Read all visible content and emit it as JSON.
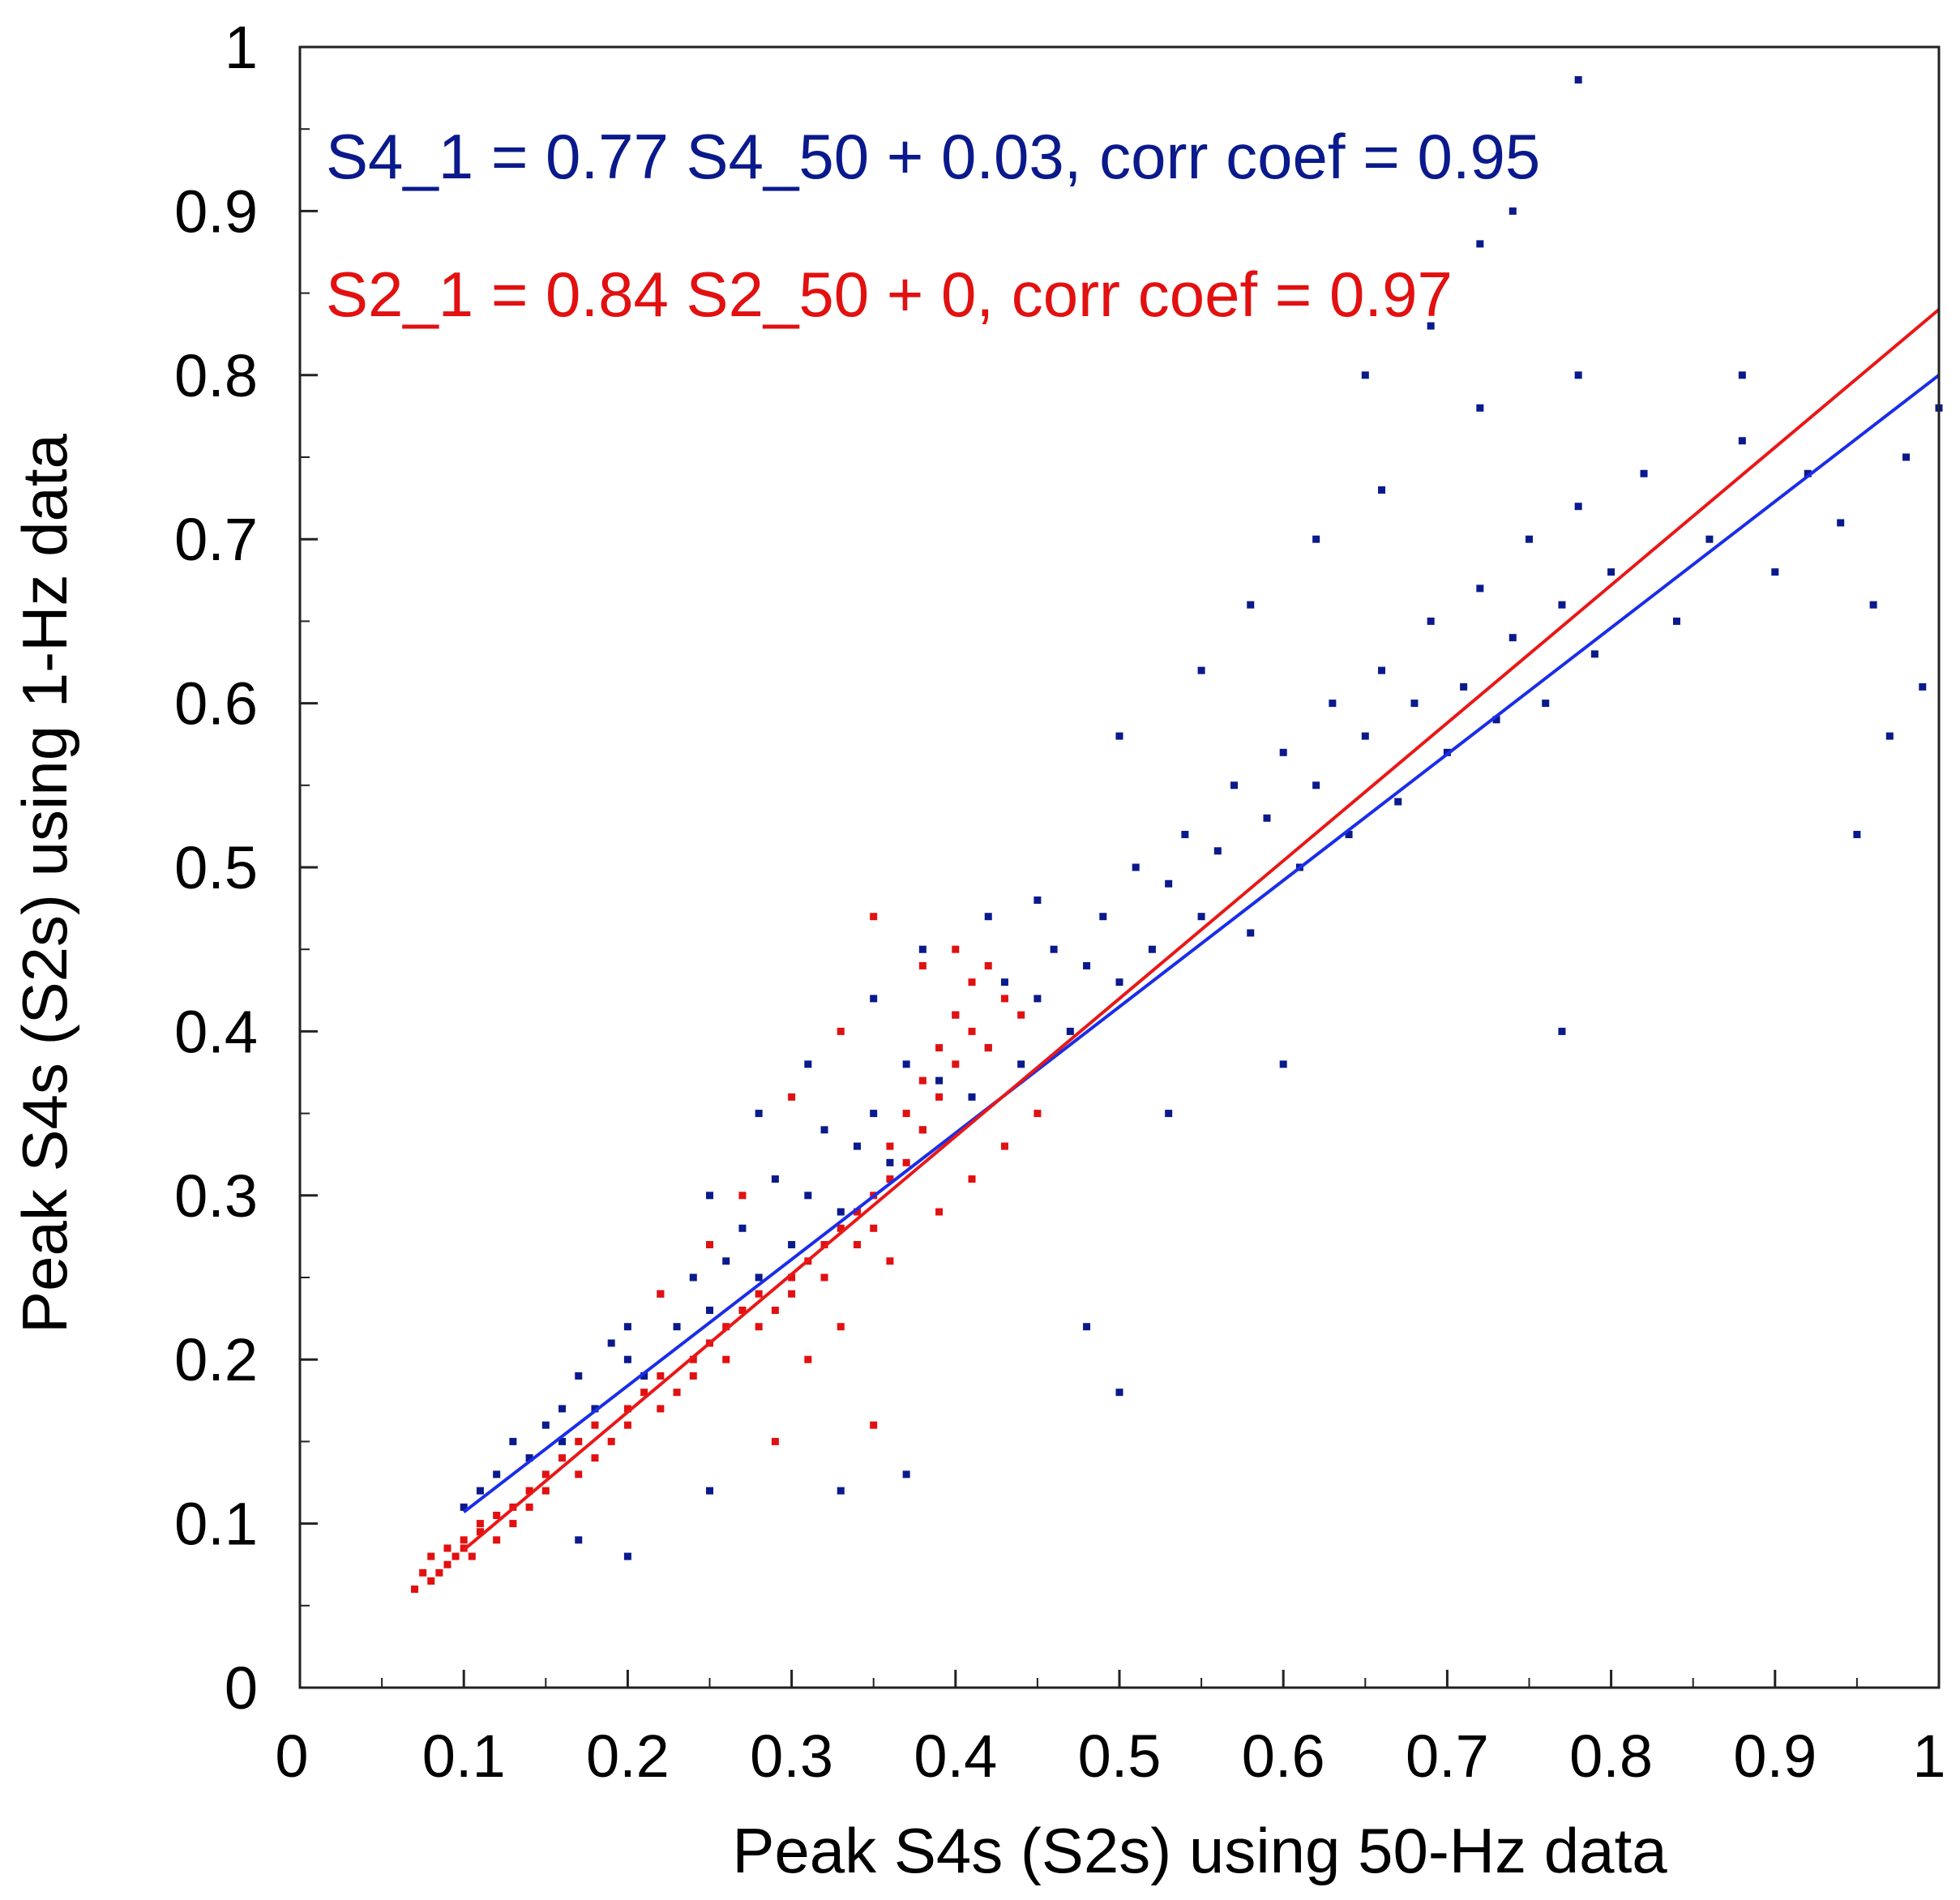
{
  "chart_data": {
    "type": "scatter",
    "xlabel": "Peak S4s (S2s) using 50-Hz data",
    "ylabel": "Peak S4s (S2s) using 1-Hz data",
    "xlim": [
      0,
      1
    ],
    "ylim": [
      0,
      1
    ],
    "xticks": [
      "0",
      "0.1",
      "0.2",
      "0.3",
      "0.4",
      "0.5",
      "0.6",
      "0.7",
      "0.8",
      "0.9",
      "1"
    ],
    "yticks": [
      "0",
      "0.1",
      "0.2",
      "0.3",
      "0.4",
      "0.5",
      "0.6",
      "0.7",
      "0.8",
      "0.9",
      "1"
    ],
    "grid": false,
    "annotations": [
      {
        "text": "S4_1 = 0.77 S4_50 + 0.03, corr coef = 0.95",
        "color": "#0a1a8c"
      },
      {
        "text": "S2_1 = 0.84 S2_50 + 0, corr coef = 0.97",
        "color": "#e21010"
      }
    ],
    "series": [
      {
        "name": "S4",
        "color": "#0a1a8c",
        "fit": {
          "slope": 0.77,
          "intercept": 0.03,
          "x_range": [
            0.1,
            1.0
          ],
          "color": "#1a2de8"
        },
        "points": [
          [
            0.1,
            0.11
          ],
          [
            0.11,
            0.12
          ],
          [
            0.12,
            0.13
          ],
          [
            0.13,
            0.15
          ],
          [
            0.14,
            0.14
          ],
          [
            0.15,
            0.16
          ],
          [
            0.16,
            0.17
          ],
          [
            0.16,
            0.15
          ],
          [
            0.17,
            0.19
          ],
          [
            0.18,
            0.17
          ],
          [
            0.19,
            0.21
          ],
          [
            0.2,
            0.2
          ],
          [
            0.2,
            0.22
          ],
          [
            0.21,
            0.19
          ],
          [
            0.22,
            0.24
          ],
          [
            0.23,
            0.22
          ],
          [
            0.24,
            0.25
          ],
          [
            0.25,
            0.23
          ],
          [
            0.25,
            0.3
          ],
          [
            0.26,
            0.26
          ],
          [
            0.27,
            0.28
          ],
          [
            0.28,
            0.25
          ],
          [
            0.29,
            0.31
          ],
          [
            0.3,
            0.27
          ],
          [
            0.31,
            0.3
          ],
          [
            0.32,
            0.34
          ],
          [
            0.33,
            0.29
          ],
          [
            0.34,
            0.33
          ],
          [
            0.35,
            0.35
          ],
          [
            0.36,
            0.32
          ],
          [
            0.37,
            0.38
          ],
          [
            0.38,
            0.34
          ],
          [
            0.39,
            0.37
          ],
          [
            0.4,
            0.41
          ],
          [
            0.41,
            0.36
          ],
          [
            0.42,
            0.39
          ],
          [
            0.43,
            0.43
          ],
          [
            0.44,
            0.38
          ],
          [
            0.45,
            0.42
          ],
          [
            0.46,
            0.45
          ],
          [
            0.47,
            0.4
          ],
          [
            0.48,
            0.44
          ],
          [
            0.49,
            0.47
          ],
          [
            0.5,
            0.43
          ],
          [
            0.51,
            0.5
          ],
          [
            0.52,
            0.45
          ],
          [
            0.53,
            0.49
          ],
          [
            0.54,
            0.52
          ],
          [
            0.55,
            0.47
          ],
          [
            0.56,
            0.51
          ],
          [
            0.57,
            0.55
          ],
          [
            0.58,
            0.46
          ],
          [
            0.59,
            0.53
          ],
          [
            0.6,
            0.57
          ],
          [
            0.61,
            0.5
          ],
          [
            0.62,
            0.55
          ],
          [
            0.63,
            0.6
          ],
          [
            0.64,
            0.52
          ],
          [
            0.65,
            0.58
          ],
          [
            0.66,
            0.62
          ],
          [
            0.67,
            0.54
          ],
          [
            0.68,
            0.6
          ],
          [
            0.69,
            0.65
          ],
          [
            0.7,
            0.57
          ],
          [
            0.71,
            0.61
          ],
          [
            0.72,
            0.67
          ],
          [
            0.73,
            0.59
          ],
          [
            0.74,
            0.64
          ],
          [
            0.75,
            0.7
          ],
          [
            0.76,
            0.6
          ],
          [
            0.77,
            0.66
          ],
          [
            0.78,
            0.72
          ],
          [
            0.79,
            0.63
          ],
          [
            0.8,
            0.68
          ],
          [
            0.82,
            0.74
          ],
          [
            0.84,
            0.65
          ],
          [
            0.86,
            0.7
          ],
          [
            0.88,
            0.76
          ],
          [
            0.9,
            0.68
          ],
          [
            0.92,
            0.74
          ],
          [
            0.94,
            0.71
          ],
          [
            0.96,
            0.66
          ],
          [
            0.98,
            0.75
          ],
          [
            1.0,
            0.78
          ],
          [
            0.28,
            0.35
          ],
          [
            0.31,
            0.38
          ],
          [
            0.35,
            0.42
          ],
          [
            0.38,
            0.45
          ],
          [
            0.42,
            0.47
          ],
          [
            0.45,
            0.48
          ],
          [
            0.5,
            0.58
          ],
          [
            0.55,
            0.62
          ],
          [
            0.58,
            0.66
          ],
          [
            0.62,
            0.7
          ],
          [
            0.66,
            0.73
          ],
          [
            0.72,
            0.78
          ],
          [
            0.78,
            0.8
          ],
          [
            0.88,
            0.8
          ],
          [
            0.78,
            0.98
          ],
          [
            0.74,
            0.9
          ],
          [
            0.72,
            0.88
          ],
          [
            0.65,
            0.8
          ],
          [
            0.69,
            0.83
          ],
          [
            0.25,
            0.12
          ],
          [
            0.33,
            0.12
          ],
          [
            0.37,
            0.13
          ],
          [
            0.2,
            0.08
          ],
          [
            0.17,
            0.09
          ],
          [
            0.48,
            0.22
          ],
          [
            0.5,
            0.18
          ],
          [
            0.53,
            0.35
          ],
          [
            0.6,
            0.38
          ],
          [
            0.77,
            0.4
          ],
          [
            0.95,
            0.52
          ],
          [
            0.99,
            0.61
          ],
          [
            0.97,
            0.58
          ]
        ]
      },
      {
        "name": "S2",
        "color": "#e21010",
        "fit": {
          "slope": 0.84,
          "intercept": 0.0,
          "x_range": [
            0.1,
            1.0
          ],
          "color": "#e81818"
        },
        "points": [
          [
            0.07,
            0.06
          ],
          [
            0.075,
            0.07
          ],
          [
            0.08,
            0.065
          ],
          [
            0.08,
            0.08
          ],
          [
            0.085,
            0.07
          ],
          [
            0.09,
            0.075
          ],
          [
            0.09,
            0.085
          ],
          [
            0.095,
            0.08
          ],
          [
            0.1,
            0.085
          ],
          [
            0.1,
            0.09
          ],
          [
            0.105,
            0.08
          ],
          [
            0.11,
            0.095
          ],
          [
            0.11,
            0.1
          ],
          [
            0.12,
            0.09
          ],
          [
            0.12,
            0.105
          ],
          [
            0.13,
            0.11
          ],
          [
            0.13,
            0.1
          ],
          [
            0.14,
            0.12
          ],
          [
            0.14,
            0.11
          ],
          [
            0.15,
            0.13
          ],
          [
            0.15,
            0.12
          ],
          [
            0.16,
            0.14
          ],
          [
            0.17,
            0.13
          ],
          [
            0.17,
            0.15
          ],
          [
            0.18,
            0.14
          ],
          [
            0.18,
            0.16
          ],
          [
            0.19,
            0.15
          ],
          [
            0.2,
            0.17
          ],
          [
            0.2,
            0.16
          ],
          [
            0.21,
            0.18
          ],
          [
            0.22,
            0.17
          ],
          [
            0.22,
            0.19
          ],
          [
            0.23,
            0.18
          ],
          [
            0.24,
            0.2
          ],
          [
            0.24,
            0.19
          ],
          [
            0.25,
            0.21
          ],
          [
            0.26,
            0.2
          ],
          [
            0.26,
            0.22
          ],
          [
            0.27,
            0.23
          ],
          [
            0.28,
            0.22
          ],
          [
            0.28,
            0.24
          ],
          [
            0.29,
            0.23
          ],
          [
            0.3,
            0.25
          ],
          [
            0.3,
            0.24
          ],
          [
            0.31,
            0.26
          ],
          [
            0.32,
            0.27
          ],
          [
            0.32,
            0.25
          ],
          [
            0.33,
            0.28
          ],
          [
            0.34,
            0.27
          ],
          [
            0.34,
            0.29
          ],
          [
            0.35,
            0.3
          ],
          [
            0.35,
            0.28
          ],
          [
            0.36,
            0.31
          ],
          [
            0.36,
            0.33
          ],
          [
            0.37,
            0.32
          ],
          [
            0.37,
            0.35
          ],
          [
            0.38,
            0.34
          ],
          [
            0.38,
            0.37
          ],
          [
            0.39,
            0.36
          ],
          [
            0.39,
            0.39
          ],
          [
            0.4,
            0.38
          ],
          [
            0.4,
            0.41
          ],
          [
            0.41,
            0.4
          ],
          [
            0.41,
            0.43
          ],
          [
            0.42,
            0.39
          ],
          [
            0.43,
            0.42
          ],
          [
            0.44,
            0.41
          ],
          [
            0.35,
            0.47
          ],
          [
            0.38,
            0.44
          ],
          [
            0.4,
            0.45
          ],
          [
            0.42,
            0.44
          ],
          [
            0.33,
            0.4
          ],
          [
            0.3,
            0.36
          ],
          [
            0.27,
            0.3
          ],
          [
            0.25,
            0.27
          ],
          [
            0.22,
            0.24
          ],
          [
            0.35,
            0.16
          ],
          [
            0.29,
            0.15
          ],
          [
            0.31,
            0.2
          ],
          [
            0.33,
            0.22
          ],
          [
            0.36,
            0.26
          ],
          [
            0.39,
            0.29
          ],
          [
            0.41,
            0.31
          ],
          [
            0.43,
            0.33
          ],
          [
            0.45,
            0.35
          ]
        ]
      }
    ]
  }
}
